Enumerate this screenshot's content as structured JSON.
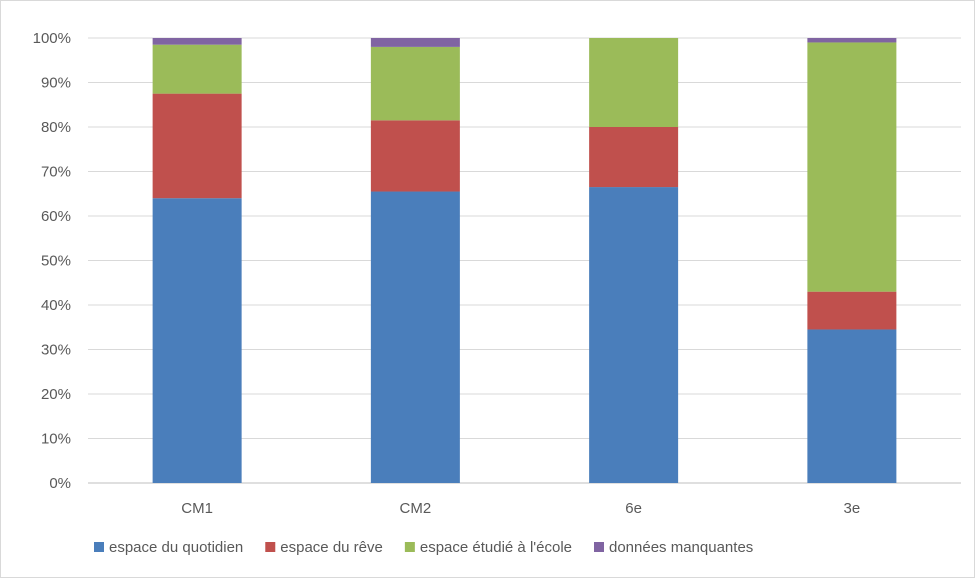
{
  "chart_data": {
    "type": "bar",
    "stacked": true,
    "percent": true,
    "title": "",
    "xlabel": "",
    "ylabel": "",
    "ylim": [
      0,
      100
    ],
    "yticks": [
      "0%",
      "10%",
      "20%",
      "30%",
      "40%",
      "50%",
      "60%",
      "70%",
      "80%",
      "90%",
      "100%"
    ],
    "grid": "horizontal",
    "legend_position": "bottom",
    "categories": [
      "CM1",
      "CM2",
      "6e",
      "3e"
    ],
    "series": [
      {
        "name": "espace du quotidien",
        "color": "#4a7ebb",
        "values": [
          64.0,
          65.5,
          66.5,
          34.5
        ]
      },
      {
        "name": "espace du rêve",
        "color": "#c0504d",
        "values": [
          23.5,
          16.0,
          13.5,
          8.5
        ]
      },
      {
        "name": "espace étudié à l'école",
        "color": "#9bbb59",
        "values": [
          11.0,
          16.5,
          20.0,
          56.0
        ]
      },
      {
        "name": "données manquantes",
        "color": "#8064a2",
        "values": [
          1.5,
          2.0,
          0.0,
          1.0
        ]
      }
    ]
  }
}
